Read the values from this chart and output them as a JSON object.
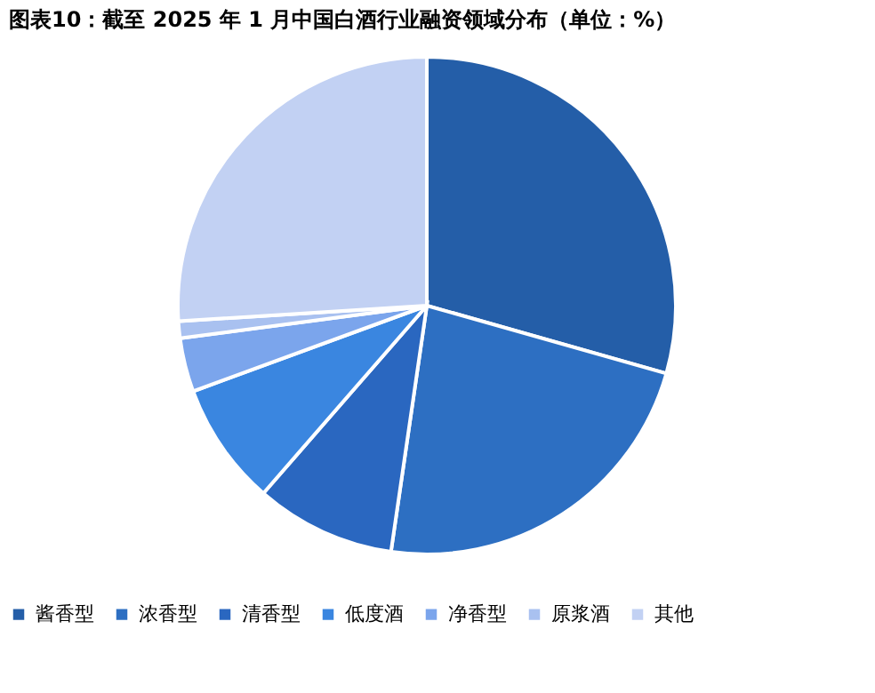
{
  "chart_data": {
    "type": "pie",
    "title": "图表10：截至 2025 年 1 月中国白酒行业融资领域分布（单位：%）",
    "categories": [
      "酱香型",
      "浓香型",
      "清香型",
      "低度酒",
      "净香型",
      "原浆酒",
      "其他"
    ],
    "values": [
      29.4,
      22.9,
      9.1,
      8.0,
      3.5,
      1.1,
      26.0
    ],
    "colors": [
      "#245ea8",
      "#2d6fc2",
      "#2a67c0",
      "#3a86e0",
      "#7ba5ec",
      "#a9c1f0",
      "#c2d1f3"
    ],
    "legend": "bottom"
  }
}
